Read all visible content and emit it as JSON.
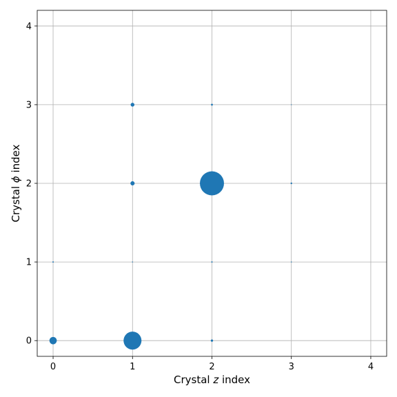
{
  "chart_data": {
    "type": "scatter",
    "title": "",
    "xlabel_parts": [
      "Crystal ",
      "z",
      " index"
    ],
    "ylabel_parts": [
      "Crystal ",
      "ϕ",
      " index"
    ],
    "xlim": [
      -0.2,
      4.2
    ],
    "ylim": [
      -0.2,
      4.2
    ],
    "x_ticks": [
      0,
      1,
      2,
      3,
      4
    ],
    "y_ticks": [
      0,
      1,
      2,
      3,
      4
    ],
    "x_tick_labels": [
      "0",
      "1",
      "2",
      "3",
      "4"
    ],
    "y_tick_labels": [
      "0",
      "1",
      "2",
      "3",
      "4"
    ],
    "grid": true,
    "marker_color": "#1f77b4",
    "points": [
      {
        "x": 0,
        "y": 0,
        "size": 30
      },
      {
        "x": 1,
        "y": 0,
        "size": 180
      },
      {
        "x": 2,
        "y": 0,
        "size": 3
      },
      {
        "x": 0,
        "y": 1,
        "size": 1
      },
      {
        "x": 1,
        "y": 1,
        "size": 0.5
      },
      {
        "x": 2,
        "y": 1,
        "size": 1
      },
      {
        "x": 3,
        "y": 1,
        "size": 0.5
      },
      {
        "x": 1,
        "y": 2,
        "size": 10
      },
      {
        "x": 2,
        "y": 2,
        "size": 325
      },
      {
        "x": 3,
        "y": 2,
        "size": 1.5
      },
      {
        "x": 1,
        "y": 3,
        "size": 8
      },
      {
        "x": 2,
        "y": 3,
        "size": 2
      },
      {
        "x": 3,
        "y": 3,
        "size": 0.3
      }
    ]
  }
}
